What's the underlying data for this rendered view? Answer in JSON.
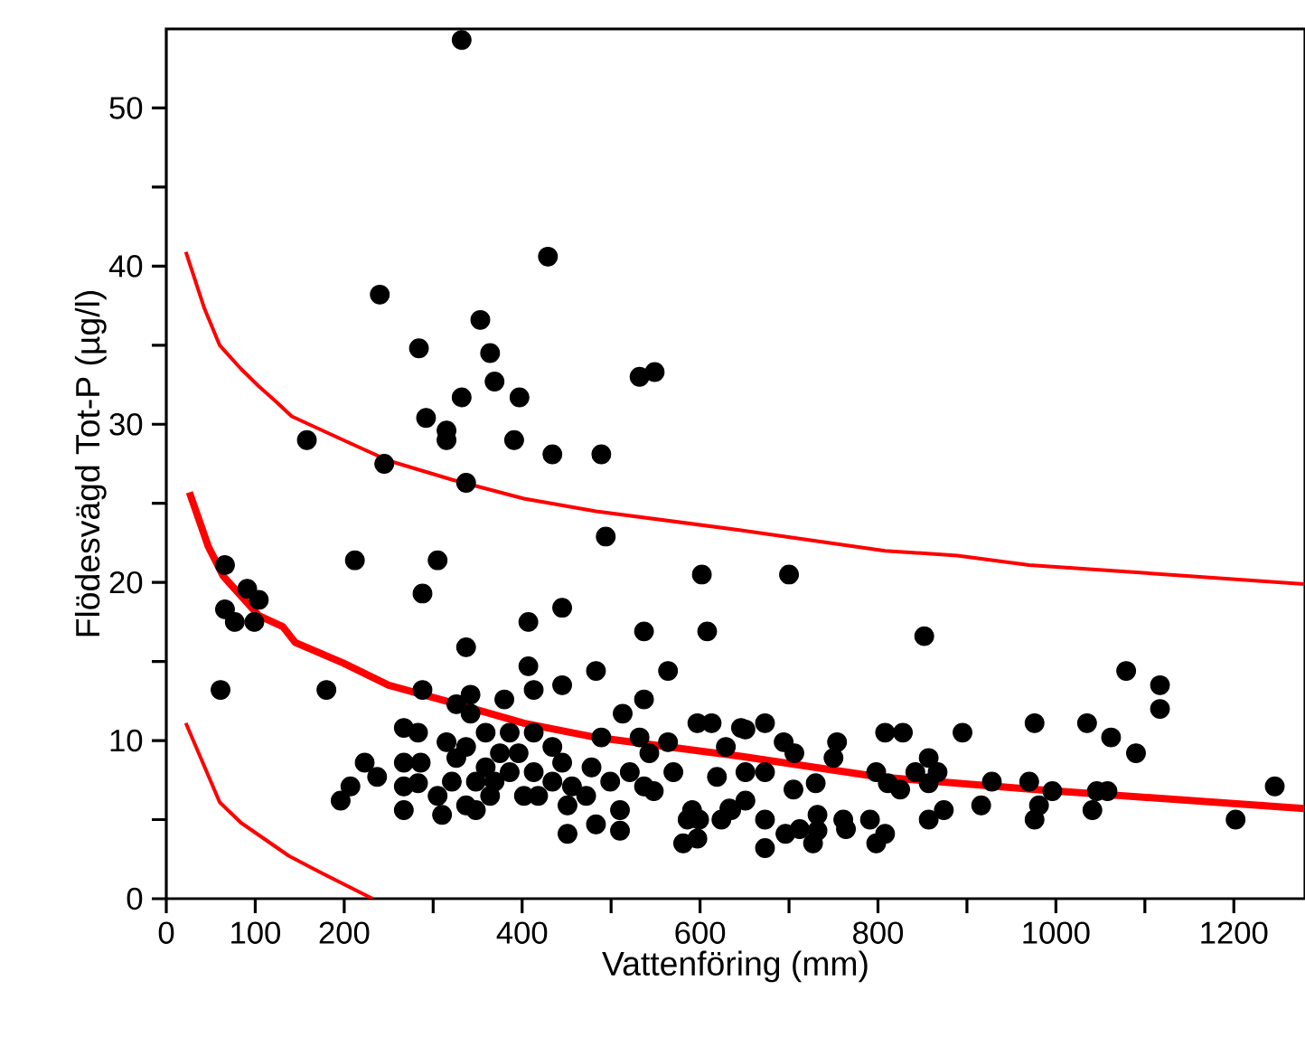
{
  "chart_data": {
    "type": "scatter",
    "xlabel": "Vattenföring (mm)",
    "ylabel": "Flödesvägd Tot-P (µg/l)",
    "xlim": [
      0,
      1280
    ],
    "ylim": [
      0,
      55
    ],
    "xticks": [
      0,
      100,
      200,
      {
        "value": 300,
        "label": null
      },
      400,
      {
        "value": 500,
        "label": null
      },
      600,
      {
        "value": 700,
        "label": null
      },
      800,
      {
        "value": 900,
        "label": null
      },
      1000,
      {
        "value": 1100,
        "label": null
      },
      1200
    ],
    "yticks": [
      0,
      {
        "value": 5,
        "label": null
      },
      10,
      {
        "value": 15,
        "label": null
      },
      20,
      {
        "value": 25,
        "label": null
      },
      30,
      {
        "value": 35,
        "label": null
      },
      40,
      {
        "value": 45,
        "label": null
      },
      50
    ],
    "series": [
      {
        "marker": "circle",
        "color": "#000000",
        "x": [
          332,
          429,
          240,
          353,
          284,
          364,
          369,
          532,
          549,
          332,
          397,
          292,
          315,
          315,
          391,
          158,
          434,
          489,
          245,
          337,
          494,
          212,
          305,
          66,
          602,
          288,
          91,
          104,
          66,
          77,
          99,
          445,
          407,
          537,
          608,
          337,
          407,
          483,
          564,
          413,
          445,
          61,
          180,
          288,
          537,
          380,
          342,
          513,
          326,
          196,
          207,
          223,
          237,
          267,
          267,
          267,
          267,
          283,
          286,
          283,
          315,
          310,
          305,
          321,
          326,
          337,
          337,
          342,
          348,
          348,
          359,
          359,
          364,
          369,
          375,
          386,
          386,
          396,
          402,
          413,
          413,
          418,
          434,
          434,
          445,
          451,
          451,
          456,
          472,
          478,
          483,
          489,
          499,
          510,
          510,
          521,
          532,
          537,
          543,
          548,
          564,
          570,
          581,
          586,
          591,
          597,
          613,
          597,
          599,
          619,
          624,
          629,
          635,
          646,
          633,
          651,
          651,
          651,
          673,
          673,
          673,
          673,
          694,
          696,
          700,
          705,
          706,
          712,
          727,
          730,
          732,
          732,
          750,
          754,
          761,
          764,
          791,
          798,
          798,
          808,
          808,
          811,
          828,
          825,
          842,
          852,
          857,
          857,
          857,
          867,
          874,
          895,
          916,
          928,
          970,
          976,
          981,
          976,
          996,
          1035,
          1041,
          1046,
          1058,
          1062,
          1079,
          1090,
          1117,
          1117,
          1202,
          1246
        ],
        "values": [
          54.3,
          40.6,
          38.2,
          36.6,
          34.8,
          34.5,
          32.7,
          33.0,
          33.3,
          31.7,
          31.7,
          30.4,
          29.6,
          29.0,
          29.0,
          29.0,
          28.1,
          28.1,
          27.5,
          26.3,
          22.9,
          21.4,
          21.4,
          21.1,
          20.5,
          19.3,
          19.6,
          18.9,
          18.3,
          17.5,
          17.5,
          18.4,
          17.5,
          16.9,
          16.9,
          15.9,
          14.7,
          14.4,
          14.4,
          13.2,
          13.5,
          13.2,
          13.2,
          13.2,
          12.6,
          12.6,
          12.9,
          11.7,
          12.3,
          6.2,
          7.1,
          8.6,
          7.7,
          10.8,
          8.6,
          7.1,
          5.6,
          10.5,
          8.6,
          7.3,
          9.9,
          5.3,
          6.5,
          7.4,
          8.9,
          9.6,
          5.9,
          11.7,
          5.6,
          7.4,
          8.3,
          10.5,
          6.5,
          7.4,
          9.2,
          8.0,
          10.5,
          9.2,
          6.5,
          10.5,
          8.0,
          6.5,
          9.6,
          7.4,
          8.6,
          4.1,
          5.9,
          7.1,
          6.5,
          8.3,
          4.7,
          10.2,
          7.4,
          5.6,
          4.3,
          8.0,
          10.2,
          7.1,
          9.2,
          6.8,
          9.9,
          8.0,
          3.5,
          5.0,
          5.6,
          11.1,
          11.1,
          3.8,
          5.0,
          7.7,
          5.0,
          9.6,
          5.6,
          10.8,
          5.7,
          10.7,
          6.2,
          8.0,
          11.1,
          5.0,
          3.2,
          8.0,
          9.9,
          4.1,
          20.5,
          6.9,
          9.2,
          4.4,
          3.5,
          7.3,
          5.3,
          4.3,
          8.9,
          9.9,
          5.0,
          4.4,
          5.0,
          8.0,
          3.5,
          4.1,
          10.5,
          7.3,
          10.5,
          6.9,
          8.0,
          16.6,
          8.9,
          7.3,
          5.0,
          8.0,
          5.6,
          10.5,
          5.9,
          7.4,
          7.4,
          11.1,
          5.9,
          5.0,
          6.8,
          11.1,
          5.6,
          6.8,
          6.8,
          10.2,
          14.4,
          9.2,
          13.5,
          12.0,
          5.0,
          7.1
        ]
      },
      {
        "type": "line",
        "marker": "none",
        "color": "#ff0000",
        "x": [
          22,
          43,
          60,
          84,
          104,
          124,
          141,
          199,
          250,
          321,
          402,
          483,
          646,
          808,
          889,
          970,
          1279
        ],
        "values": [
          40.9,
          37.3,
          35.0,
          33.5,
          32.4,
          31.4,
          30.5,
          29.0,
          27.7,
          26.5,
          25.3,
          24.5,
          23.3,
          22.0,
          21.7,
          21.1,
          19.9
        ]
      },
      {
        "type": "line",
        "marker": "none",
        "color": "#ff0000",
        "x": [
          26,
          47,
          64,
          104,
          131,
          145,
          199,
          250,
          321,
          402,
          483,
          564,
          646,
          801,
          977,
          1279
        ],
        "values": [
          25.7,
          22.3,
          20.4,
          17.9,
          17.2,
          16.2,
          14.9,
          13.5,
          12.4,
          11.1,
          10.2,
          9.6,
          9.0,
          7.7,
          6.9,
          5.7
        ]
      },
      {
        "type": "line",
        "marker": "none",
        "color": "#ff0000",
        "x": [
          22,
          60,
          84,
          138,
          172,
          232
        ],
        "values": [
          11.1,
          6.1,
          4.8,
          2.7,
          1.7,
          0.0
        ]
      }
    ]
  }
}
